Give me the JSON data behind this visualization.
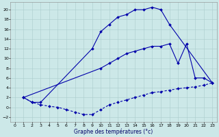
{
  "background_color": "#cce8e8",
  "grid_color": "#aacccc",
  "line_color": "#0000aa",
  "xlabel": "Graphe des températures (°c)",
  "xlim": [
    -0.5,
    23.5
  ],
  "ylim": [
    -3,
    21.5
  ],
  "xticks": [
    0,
    1,
    2,
    3,
    4,
    5,
    6,
    7,
    8,
    9,
    10,
    11,
    12,
    13,
    14,
    15,
    16,
    17,
    18,
    19,
    20,
    21,
    22,
    23
  ],
  "yticks": [
    -2,
    0,
    2,
    4,
    6,
    8,
    10,
    12,
    14,
    16,
    18,
    20
  ],
  "curve1_x": [
    1,
    2,
    3,
    9,
    10,
    11,
    12,
    13,
    14,
    15,
    16,
    17,
    18,
    23
  ],
  "curve1_y": [
    2,
    1,
    1,
    12,
    15.5,
    17,
    18.5,
    19,
    20,
    20,
    20.5,
    20,
    17,
    5
  ],
  "curve2_x": [
    1,
    2,
    3,
    4,
    5,
    6,
    7,
    8,
    9,
    10,
    11,
    12,
    13,
    14,
    15,
    16,
    17,
    18,
    19,
    20,
    21,
    22,
    23
  ],
  "curve2_y": [
    2,
    1,
    0.5,
    0.2,
    0,
    -0.5,
    -1,
    -1.5,
    -1.5,
    -0.5,
    0.5,
    1,
    1.5,
    2,
    2.5,
    3,
    3.2,
    3.5,
    3.8,
    4,
    4.2,
    4.5,
    5
  ],
  "curve3_x": [
    1,
    10,
    11,
    12,
    13,
    14,
    15,
    16,
    17,
    18,
    19,
    20,
    21,
    22,
    23
  ],
  "curve3_y": [
    2,
    8,
    9,
    10,
    11,
    11.5,
    12,
    12.5,
    12.5,
    13,
    9,
    13,
    6,
    6,
    5
  ]
}
